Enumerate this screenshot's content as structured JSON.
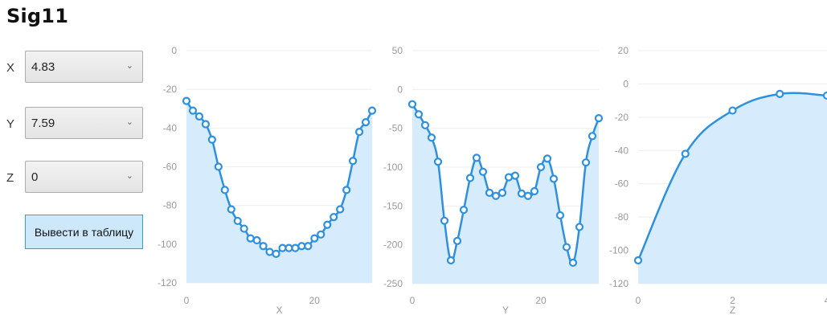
{
  "window": {
    "title": "Sig11"
  },
  "controls": {
    "x": {
      "label": "X",
      "value": "4.83"
    },
    "y": {
      "label": "Y",
      "value": "7.59"
    },
    "z": {
      "label": "Z",
      "value": "0"
    },
    "export_button": "Вывести в таблицу",
    "dropdown_icon": "chevron-down-icon"
  },
  "theme": {
    "series_color": "#2e90e0",
    "fill_color": "#d6ebfb",
    "grid_color": "#eeeeee",
    "axis_text_color": "#9a9a9a"
  },
  "chart_data": [
    {
      "type": "area",
      "xlabel": "X",
      "ylabel": "",
      "xlim": [
        0,
        29
      ],
      "ylim": [
        -120,
        0
      ],
      "x_ticks": [
        0,
        20
      ],
      "y_ticks": [
        0,
        -20,
        -40,
        -60,
        -80,
        -100,
        -120
      ],
      "x": [
        0,
        1,
        2,
        3,
        4,
        5,
        6,
        7,
        8,
        9,
        10,
        11,
        12,
        13,
        14,
        15,
        16,
        17,
        18,
        19,
        20,
        21,
        22,
        23,
        24,
        25,
        26,
        27,
        28,
        29
      ],
      "values": [
        -26,
        -31,
        -34,
        -38,
        -46,
        -60,
        -72,
        -82,
        -88,
        -92,
        -97,
        -98,
        -101,
        -104,
        -105,
        -102,
        -102,
        -102,
        -101,
        -101,
        -97,
        -95,
        -90,
        -86,
        -82,
        -72,
        -57,
        -42,
        -37,
        -31
      ]
    },
    {
      "type": "area",
      "xlabel": "Y",
      "ylabel": "",
      "xlim": [
        0,
        29
      ],
      "ylim": [
        -250,
        50
      ],
      "x_ticks": [
        0,
        20
      ],
      "y_ticks": [
        50,
        0,
        -50,
        -100,
        -150,
        -200,
        -250
      ],
      "x": [
        0,
        1,
        2,
        3,
        4,
        5,
        6,
        7,
        8,
        9,
        10,
        11,
        12,
        13,
        14,
        15,
        16,
        17,
        18,
        19,
        20,
        21,
        22,
        23,
        24,
        25,
        26,
        27,
        28,
        29
      ],
      "values": [
        -19,
        -32,
        -46,
        -62,
        -93,
        -169,
        -220,
        -195,
        -155,
        -114,
        -88,
        -106,
        -133,
        -137,
        -133,
        -113,
        -111,
        -134,
        -137,
        -131,
        -100,
        -89,
        -115,
        -162,
        -203,
        -223,
        -177,
        -94,
        -60,
        -37
      ]
    },
    {
      "type": "area",
      "xlabel": "Z",
      "ylabel": "",
      "xlim": [
        0,
        4
      ],
      "ylim": [
        -120,
        20
      ],
      "x_ticks": [
        0,
        2,
        4
      ],
      "y_ticks": [
        20,
        0,
        -20,
        -40,
        -60,
        -80,
        -100,
        -120
      ],
      "x": [
        0,
        1,
        2,
        3,
        4
      ],
      "values": [
        -106,
        -42,
        -16,
        -6,
        -7
      ]
    }
  ]
}
